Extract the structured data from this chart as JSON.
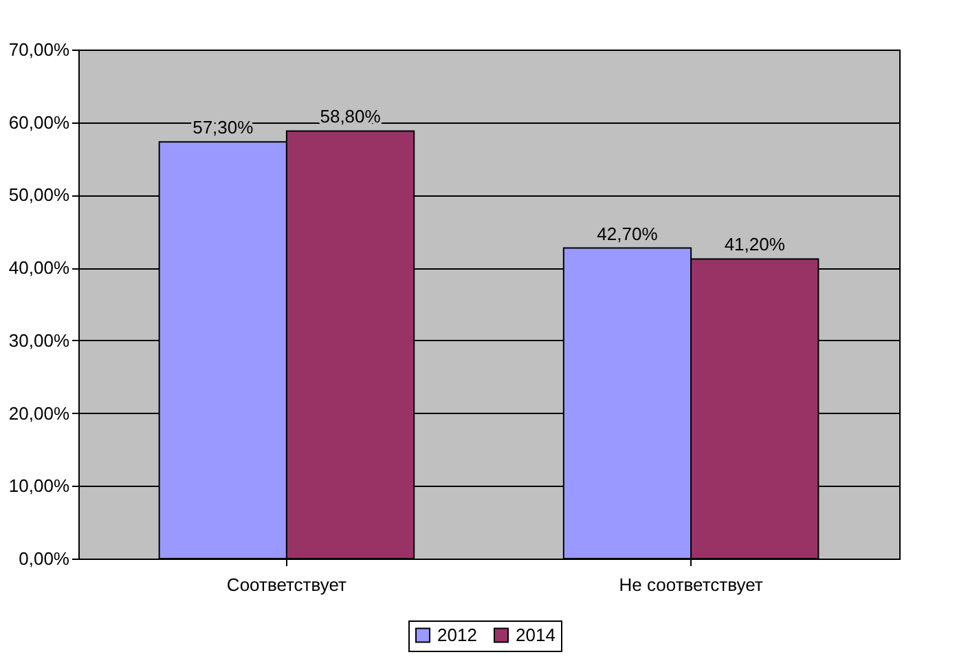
{
  "chart_data": {
    "type": "bar",
    "categories": [
      "Соответствует",
      "Не соответствует"
    ],
    "series": [
      {
        "name": "2012",
        "color": "#9999ff",
        "values": [
          57.3,
          42.7
        ],
        "value_labels": [
          "57,30%",
          "42,70%"
        ]
      },
      {
        "name": "2014",
        "color": "#993366",
        "values": [
          58.8,
          41.2
        ],
        "value_labels": [
          "58,80%",
          "41,20%"
        ]
      }
    ],
    "ylim": [
      0,
      70
    ],
    "yticks": [
      {
        "value": 0,
        "label": "0,00%"
      },
      {
        "value": 10,
        "label": "10,00%"
      },
      {
        "value": 20,
        "label": "20,00%"
      },
      {
        "value": 30,
        "label": "30,00%"
      },
      {
        "value": 40,
        "label": "40,00%"
      },
      {
        "value": 50,
        "label": "50,00%"
      },
      {
        "value": 60,
        "label": "60,00%"
      },
      {
        "value": 70,
        "label": "70,00%"
      }
    ],
    "grid": "y",
    "legend": "bottom"
  }
}
